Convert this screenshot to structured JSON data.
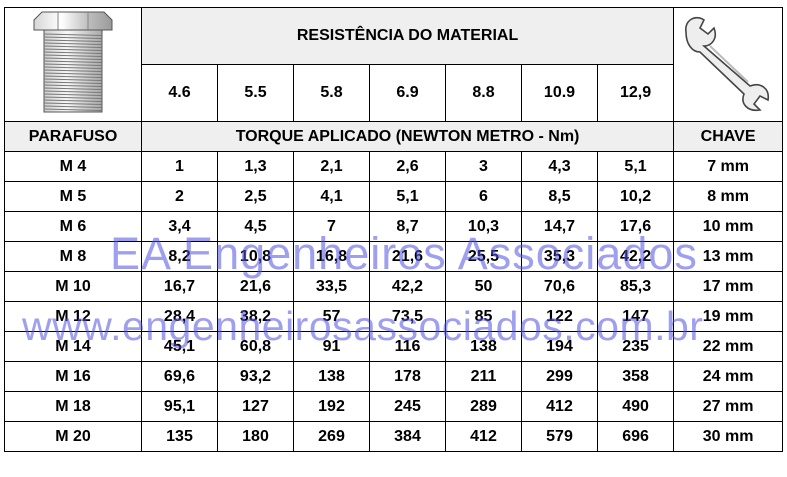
{
  "title": "RESISTÊNCIA DO MATERIAL",
  "grades": [
    "4.6",
    "5.5",
    "5.8",
    "6.9",
    "8.8",
    "10.9",
    "12,9"
  ],
  "headers": {
    "bolt": "PARAFUSO",
    "torque": "TORQUE APLICADO (NEWTON METRO - Nm)",
    "wrench": "CHAVE"
  },
  "rows": [
    {
      "bolt": "M 4",
      "values": [
        "1",
        "1,3",
        "2,1",
        "2,6",
        "3",
        "4,3",
        "5,1"
      ],
      "wrench": "7 mm"
    },
    {
      "bolt": "M 5",
      "values": [
        "2",
        "2,5",
        "4,1",
        "5,1",
        "6",
        "8,5",
        "10,2"
      ],
      "wrench": "8 mm"
    },
    {
      "bolt": "M 6",
      "values": [
        "3,4",
        "4,5",
        "7",
        "8,7",
        "10,3",
        "14,7",
        "17,6"
      ],
      "wrench": "10 mm"
    },
    {
      "bolt": "M 8",
      "values": [
        "8,2",
        "10,8",
        "16,8",
        "21,6",
        "25,5",
        "35,3",
        "42,2"
      ],
      "wrench": "13 mm"
    },
    {
      "bolt": "M 10",
      "values": [
        "16,7",
        "21,6",
        "33,5",
        "42,2",
        "50",
        "70,6",
        "85,3"
      ],
      "wrench": "17 mm"
    },
    {
      "bolt": "M 12",
      "values": [
        "28,4",
        "38,2",
        "57",
        "73,5",
        "85",
        "122",
        "147"
      ],
      "wrench": "19 mm"
    },
    {
      "bolt": "M 14",
      "values": [
        "45,1",
        "60,8",
        "91",
        "116",
        "138",
        "194",
        "235"
      ],
      "wrench": "22 mm"
    },
    {
      "bolt": "M 16",
      "values": [
        "69,6",
        "93,2",
        "138",
        "178",
        "211",
        "299",
        "358"
      ],
      "wrench": "24 mm"
    },
    {
      "bolt": "M 18",
      "values": [
        "95,1",
        "127",
        "192",
        "245",
        "289",
        "412",
        "490"
      ],
      "wrench": "27 mm"
    },
    {
      "bolt": "M 20",
      "values": [
        "135",
        "180",
        "269",
        "384",
        "412",
        "579",
        "696"
      ],
      "wrench": "30 mm"
    }
  ],
  "watermarks": {
    "line1": "EA Engenheiros Associados",
    "line2": "www.engenheirosassociados.com.br"
  },
  "icons": {
    "bolt": "hex-bolt-icon",
    "wrench": "open-end-wrench-icon"
  }
}
